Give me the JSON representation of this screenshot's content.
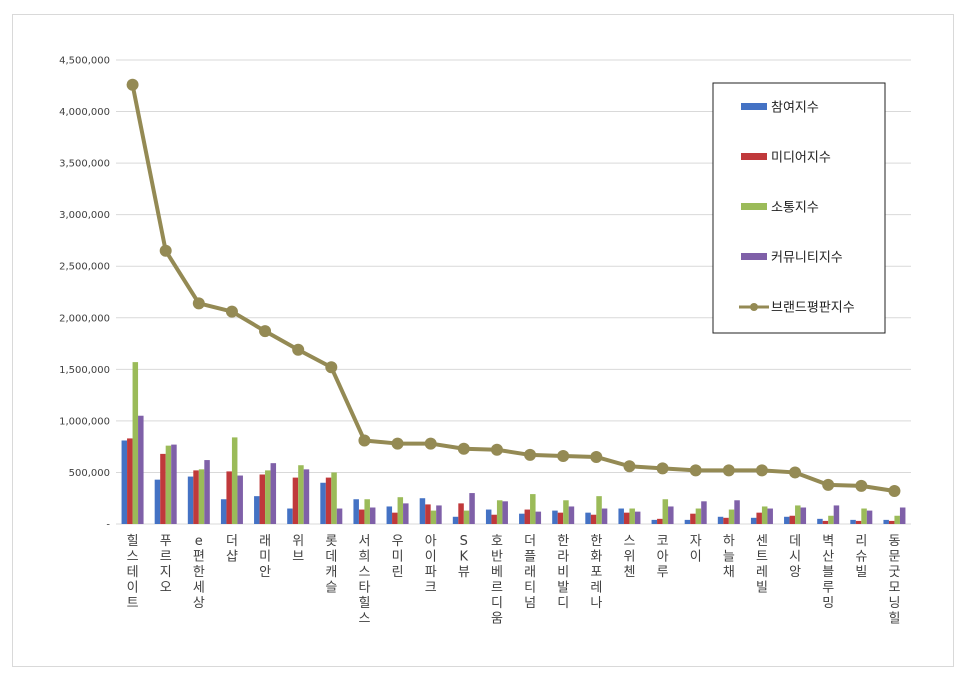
{
  "chart_data": {
    "type": "bar",
    "categories": [
      "힐스테이트",
      "푸르지오",
      "e편한세상",
      "더샵",
      "래미안",
      "위브",
      "롯데캐슬",
      "서희스타힐스",
      "우미린",
      "아이파크",
      "SK뷰",
      "호반베르디움",
      "더플래티넘",
      "한라비발디",
      "한화포레나",
      "스위첸",
      "코아루",
      "자이",
      "하늘채",
      "센트레빌",
      "데시앙",
      "벽산블루밍",
      "리슈빌",
      "동문굿모닝힐"
    ],
    "series": [
      {
        "name": "참여지수",
        "type": "bar",
        "color": "#4472c4",
        "values": [
          810000,
          430000,
          460000,
          240000,
          270000,
          150000,
          400000,
          240000,
          170000,
          250000,
          70000,
          140000,
          100000,
          130000,
          110000,
          150000,
          40000,
          40000,
          70000,
          60000,
          70000,
          50000,
          40000,
          40000
        ]
      },
      {
        "name": "미디어지수",
        "type": "bar",
        "color": "#c0393b",
        "values": [
          830000,
          680000,
          520000,
          510000,
          480000,
          450000,
          450000,
          140000,
          110000,
          190000,
          200000,
          90000,
          140000,
          110000,
          90000,
          110000,
          50000,
          100000,
          60000,
          110000,
          80000,
          30000,
          30000,
          30000
        ]
      },
      {
        "name": "소통지수",
        "type": "bar",
        "color": "#9bbb59",
        "values": [
          1570000,
          760000,
          530000,
          840000,
          520000,
          570000,
          500000,
          240000,
          260000,
          130000,
          130000,
          230000,
          290000,
          230000,
          270000,
          150000,
          240000,
          150000,
          140000,
          170000,
          180000,
          80000,
          150000,
          80000
        ]
      },
      {
        "name": "커뮤니티지수",
        "type": "bar",
        "color": "#7f60a8",
        "values": [
          1050000,
          770000,
          620000,
          470000,
          590000,
          530000,
          150000,
          160000,
          200000,
          180000,
          300000,
          220000,
          120000,
          170000,
          150000,
          120000,
          170000,
          220000,
          230000,
          150000,
          160000,
          180000,
          130000,
          160000
        ]
      },
      {
        "name": "브랜드평판지수",
        "type": "line",
        "color": "#948a54",
        "values": [
          4260000,
          2650000,
          2140000,
          2060000,
          1870000,
          1690000,
          1520000,
          810000,
          780000,
          780000,
          730000,
          720000,
          670000,
          660000,
          650000,
          560000,
          540000,
          520000,
          520000,
          520000,
          500000,
          380000,
          370000,
          320000
        ]
      }
    ],
    "y_ticks": [
      "-",
      "500,000",
      "1,000,000",
      "1,500,000",
      "2,000,000",
      "2,500,000",
      "3,000,000",
      "3,500,000",
      "4,000,000",
      "4,500,000"
    ],
    "ylim": [
      0,
      4500000
    ],
    "grid": true,
    "legend_position": "top-right"
  }
}
